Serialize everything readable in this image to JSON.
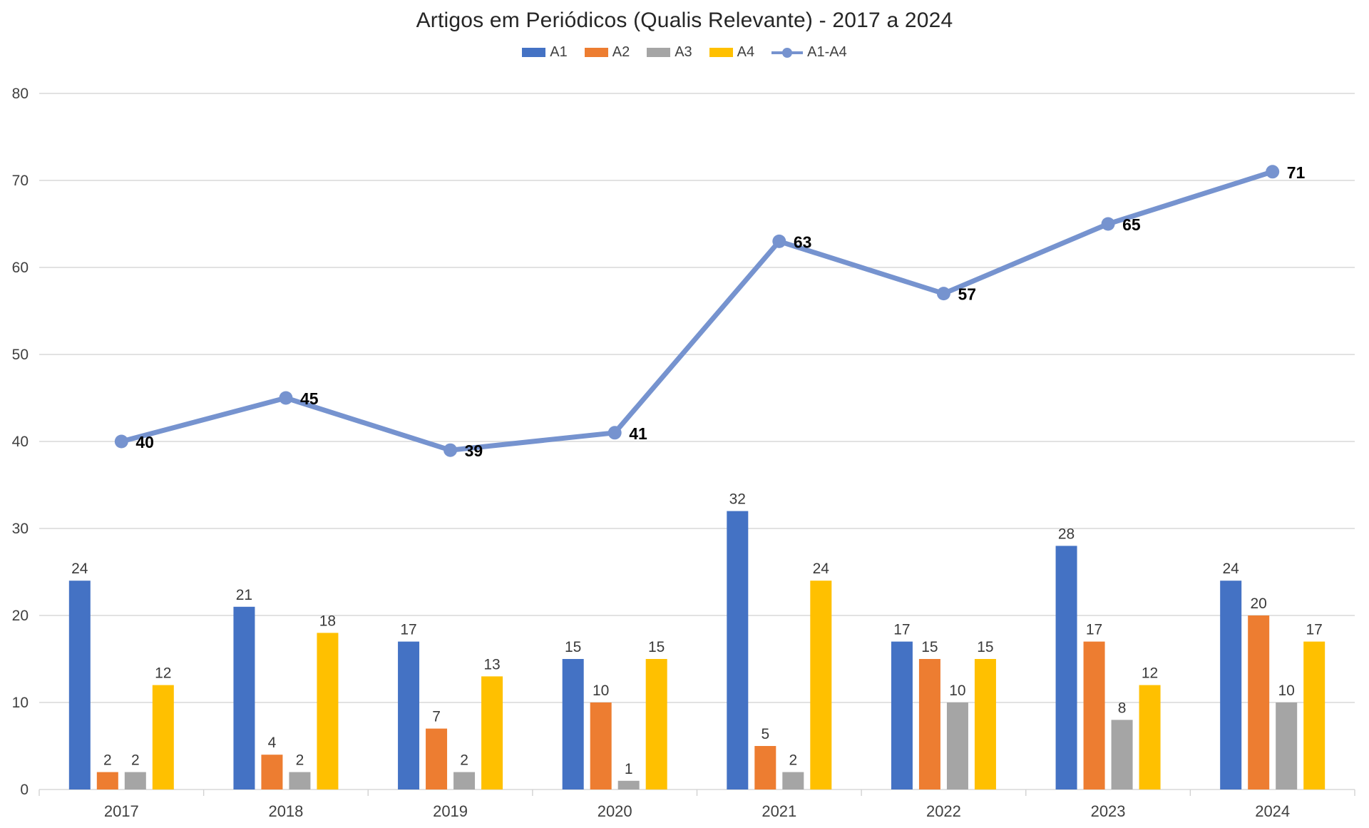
{
  "title": "Artigos em Periódicos (Qualis Relevante) - 2017 a 2024",
  "colors": {
    "a1_blue": "#4472C4",
    "a2_orange": "#ED7D31",
    "a3_gray": "#A5A5A5",
    "a4_yellow": "#FFC000",
    "line_blue": "#7693CF",
    "gridline": "#D9D9D9",
    "axis_line": "#D2D2D2",
    "tick_label": "#404040",
    "bar_label": "#3A3A3A",
    "line_label": "#000000"
  },
  "legend": {
    "items": [
      {
        "label": "A1",
        "kind": "swatch",
        "color": "#4472C4"
      },
      {
        "label": "A2",
        "kind": "swatch",
        "color": "#ED7D31"
      },
      {
        "label": "A3",
        "kind": "swatch",
        "color": "#A5A5A5"
      },
      {
        "label": "A4",
        "kind": "swatch",
        "color": "#FFC000"
      },
      {
        "label": "A1-A4",
        "kind": "line",
        "color": "#7693CF"
      }
    ]
  },
  "chart_data": {
    "type": "bar",
    "title": "Artigos em Periódicos (Qualis Relevante) - 2017 a 2024",
    "categories": [
      "2017",
      "2018",
      "2019",
      "2020",
      "2021",
      "2022",
      "2023",
      "2024"
    ],
    "series": [
      {
        "name": "A1",
        "type": "bar",
        "color": "#4472C4",
        "values": [
          24,
          21,
          17,
          15,
          32,
          17,
          28,
          24
        ]
      },
      {
        "name": "A2",
        "type": "bar",
        "color": "#ED7D31",
        "values": [
          2,
          4,
          7,
          10,
          5,
          15,
          17,
          20
        ]
      },
      {
        "name": "A3",
        "type": "bar",
        "color": "#A5A5A5",
        "values": [
          2,
          2,
          2,
          1,
          2,
          10,
          8,
          10
        ]
      },
      {
        "name": "A4",
        "type": "bar",
        "color": "#FFC000",
        "values": [
          12,
          18,
          13,
          15,
          24,
          15,
          12,
          17
        ]
      },
      {
        "name": "A1-A4",
        "type": "line",
        "color": "#7693CF",
        "values": [
          40,
          45,
          39,
          41,
          63,
          57,
          65,
          71
        ]
      }
    ],
    "xlabel": "",
    "ylabel": "",
    "ylim": [
      0,
      80
    ],
    "yticks": [
      0,
      10,
      20,
      30,
      40,
      50,
      60,
      70,
      80
    ],
    "grid": true,
    "legend_position": "top",
    "bar_labels_shown": true,
    "line_labels_shown": true
  }
}
